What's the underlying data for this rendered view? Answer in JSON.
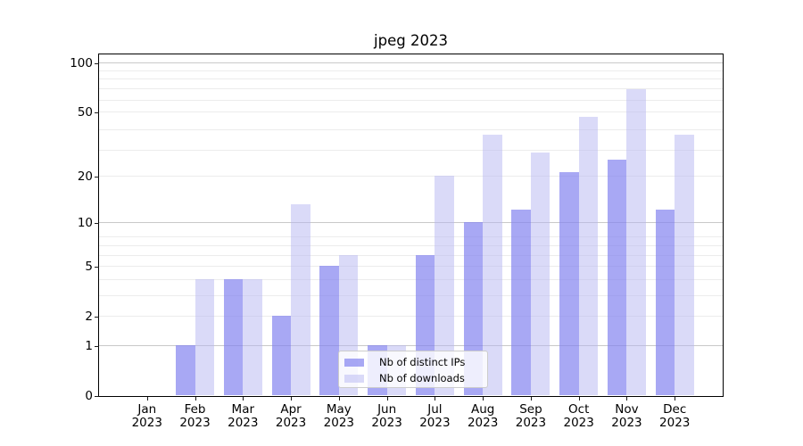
{
  "chart_data": {
    "type": "bar",
    "title": "jpeg 2023",
    "categories": [
      "Jan 2023",
      "Feb 2023",
      "Mar 2023",
      "Apr 2023",
      "May 2023",
      "Jun 2023",
      "Jul 2023",
      "Aug 2023",
      "Sep 2023",
      "Oct 2023",
      "Nov 2023",
      "Dec 2023"
    ],
    "series": [
      {
        "name": "Nb of distinct IPs",
        "color": "rgba(131,131,239,0.70)",
        "values": [
          0,
          1,
          4,
          2,
          5,
          1,
          6,
          10,
          12,
          21,
          25,
          12
        ]
      },
      {
        "name": "Nb of downloads",
        "color": "rgba(181,181,241,0.50)",
        "values": [
          0,
          4,
          4,
          13,
          6,
          1,
          20,
          36,
          28,
          46,
          68,
          36
        ]
      }
    ],
    "y_axis": {
      "scale": "log(1+x)",
      "ticks": [
        0,
        1,
        2,
        5,
        10,
        20,
        50,
        100
      ],
      "range": [
        0,
        112
      ]
    },
    "grid": "on",
    "legend": {
      "position": "lower-center-inside",
      "entries": [
        "Nb of distinct IPs",
        "Nb of downloads"
      ]
    }
  },
  "colors": {
    "background": "#ffffff",
    "spine": "#000000",
    "grid_major": "#c9c9c9",
    "grid_minor": "#ececec",
    "legend_border": "#cccccc",
    "legend_bg": "rgba(255,255,255,0.8)",
    "text": "#000000"
  }
}
